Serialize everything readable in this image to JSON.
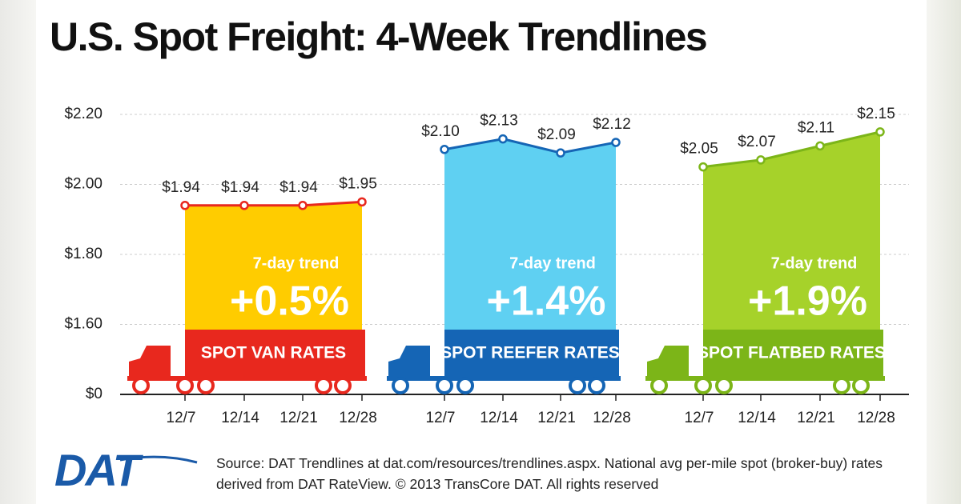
{
  "chart_data": {
    "type": "area",
    "title": "U.S. Spot Freight: 4-Week Trendlines",
    "ylim": [
      0,
      2.2
    ],
    "yticks": [
      {
        "value": 0,
        "label": "$0"
      },
      {
        "value": 1.6,
        "label": "$1.60"
      },
      {
        "value": 1.8,
        "label": "$1.80"
      },
      {
        "value": 2.0,
        "label": "$2.00"
      },
      {
        "value": 2.2,
        "label": "$2.20"
      }
    ],
    "grid": true,
    "series": [
      {
        "name": "SPOT VAN RATES",
        "color": "#e8281e",
        "fill": "#ffcc00",
        "categories": [
          "12/7",
          "12/14",
          "12/21",
          "12/28"
        ],
        "values": [
          1.94,
          1.94,
          1.94,
          1.95
        ],
        "value_labels": [
          "$1.94",
          "$1.94",
          "$1.94",
          "$1.95"
        ],
        "trend_label": "7-day trend",
        "trend": "+0.5%"
      },
      {
        "name": "SPOT REEFER RATES",
        "color": "#1565b5",
        "fill": "#5fd0f2",
        "categories": [
          "12/7",
          "12/14",
          "12/21",
          "12/28"
        ],
        "values": [
          2.1,
          2.13,
          2.09,
          2.12
        ],
        "value_labels": [
          "$2.10",
          "$2.13",
          "$2.09",
          "$2.12"
        ],
        "trend_label": "7-day trend",
        "trend": "+1.4%"
      },
      {
        "name": "SPOT FLATBED RATES",
        "color": "#7cb518",
        "fill": "#a6d22a",
        "categories": [
          "12/7",
          "12/14",
          "12/21",
          "12/28"
        ],
        "values": [
          2.05,
          2.07,
          2.11,
          2.15
        ],
        "value_labels": [
          "$2.05",
          "$2.07",
          "$2.11",
          "$2.15"
        ],
        "trend_label": "7-day trend",
        "trend": "+1.9%"
      }
    ],
    "logo": "DAT",
    "source": "Source: DAT Trendlines at dat.com/resources/trendlines.aspx. National avg per-mile spot (broker-buy) rates derived from DAT RateView. © 2013 TransCore DAT. All rights reserved"
  }
}
